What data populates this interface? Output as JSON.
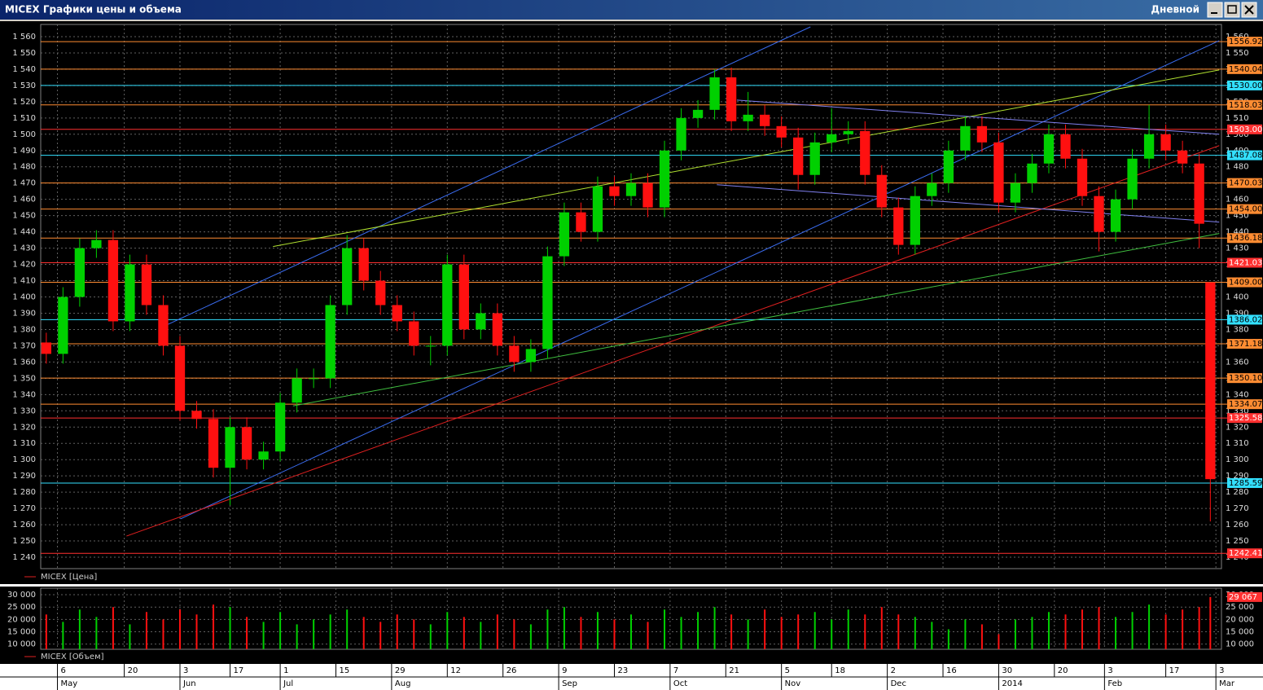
{
  "window": {
    "title": "MICEX Графики цены и объема",
    "period": "Дневной"
  },
  "chart_data": [
    {
      "type": "candlestick",
      "legend": "MICEX [Цена]",
      "up_color": "#00d000",
      "down_color": "#ff1010",
      "grid": true,
      "xlim": [
        -1,
        211
      ],
      "ylim": [
        1233.5,
        1566
      ],
      "x": [
        0,
        3,
        6,
        9,
        12,
        15,
        18,
        21,
        24,
        27,
        30,
        33,
        36,
        39,
        42,
        45,
        48,
        51,
        54,
        57,
        60,
        63,
        66,
        69,
        72,
        75,
        78,
        81,
        84,
        87,
        90,
        93,
        96,
        99,
        102,
        105,
        108,
        111,
        114,
        117,
        120,
        123,
        126,
        129,
        132,
        135,
        138,
        141,
        144,
        147,
        150,
        153,
        156,
        159,
        162,
        165,
        168,
        171,
        174,
        177,
        180,
        183,
        186,
        189,
        192,
        195,
        198,
        201,
        204,
        207,
        209
      ],
      "open": [
        1372,
        1365,
        1400,
        1430,
        1435,
        1385,
        1420,
        1395,
        1370,
        1330,
        1325,
        1295,
        1320,
        1300,
        1305,
        1335,
        1350,
        1350,
        1395,
        1430,
        1410,
        1395,
        1385,
        1370,
        1370,
        1420,
        1380,
        1390,
        1370,
        1360,
        1368,
        1425,
        1452,
        1440,
        1468,
        1462,
        1470,
        1455,
        1490,
        1510,
        1515,
        1535,
        1508,
        1512,
        1505,
        1498,
        1475,
        1495,
        1500,
        1502,
        1475,
        1455,
        1432,
        1462,
        1470,
        1490,
        1505,
        1495,
        1458,
        1470,
        1482,
        1500,
        1485,
        1462,
        1440,
        1460,
        1485,
        1500,
        1490,
        1482,
        1409
      ],
      "high": [
        1378,
        1406,
        1436,
        1441,
        1441,
        1426,
        1426,
        1401,
        1376,
        1336,
        1331,
        1326,
        1326,
        1311,
        1341,
        1356,
        1356,
        1401,
        1438,
        1436,
        1416,
        1401,
        1391,
        1376,
        1426,
        1426,
        1396,
        1396,
        1376,
        1374,
        1431,
        1458,
        1458,
        1474,
        1474,
        1476,
        1476,
        1496,
        1516,
        1521,
        1540,
        1541,
        1526,
        1518,
        1511,
        1504,
        1501,
        1516,
        1508,
        1508,
        1481,
        1461,
        1468,
        1476,
        1496,
        1511,
        1511,
        1501,
        1476,
        1488,
        1506,
        1506,
        1491,
        1468,
        1466,
        1491,
        1518,
        1506,
        1496,
        1488,
        1409
      ],
      "low": [
        1359,
        1359,
        1394,
        1424,
        1379,
        1379,
        1389,
        1364,
        1324,
        1319,
        1289,
        1272,
        1294,
        1294,
        1299,
        1329,
        1344,
        1344,
        1389,
        1404,
        1389,
        1379,
        1364,
        1358,
        1364,
        1374,
        1374,
        1364,
        1354,
        1354,
        1362,
        1419,
        1434,
        1434,
        1456,
        1456,
        1449,
        1449,
        1484,
        1504,
        1509,
        1502,
        1502,
        1499,
        1492,
        1466,
        1469,
        1489,
        1494,
        1469,
        1449,
        1426,
        1426,
        1456,
        1464,
        1484,
        1489,
        1452,
        1452,
        1464,
        1476,
        1479,
        1456,
        1428,
        1434,
        1454,
        1479,
        1484,
        1476,
        1430,
        1262
      ],
      "close": [
        1365,
        1400,
        1430,
        1435,
        1385,
        1420,
        1395,
        1370,
        1330,
        1325,
        1295,
        1320,
        1300,
        1305,
        1335,
        1350,
        1350,
        1395,
        1430,
        1410,
        1395,
        1385,
        1370,
        1370,
        1420,
        1380,
        1390,
        1370,
        1360,
        1368,
        1425,
        1452,
        1440,
        1468,
        1462,
        1470,
        1455,
        1490,
        1510,
        1515,
        1535,
        1508,
        1512,
        1505,
        1498,
        1475,
        1495,
        1500,
        1502,
        1475,
        1455,
        1432,
        1462,
        1470,
        1490,
        1505,
        1495,
        1458,
        1470,
        1482,
        1500,
        1485,
        1462,
        1440,
        1460,
        1485,
        1500,
        1490,
        1482,
        1445,
        1288
      ],
      "yticks": [
        {
          "value": 1240,
          "label": "1 240"
        },
        {
          "value": 1250,
          "label": "1 250"
        },
        {
          "value": 1260,
          "label": "1 260"
        },
        {
          "value": 1270,
          "label": "1 270"
        },
        {
          "value": 1280,
          "label": "1 280"
        },
        {
          "value": 1290,
          "label": "1 290"
        },
        {
          "value": 1300,
          "label": "1 300"
        },
        {
          "value": 1310,
          "label": "1 310"
        },
        {
          "value": 1320,
          "label": "1 320"
        },
        {
          "value": 1330,
          "label": "1 330"
        },
        {
          "value": 1340,
          "label": "1 340"
        },
        {
          "value": 1350,
          "label": "1 350"
        },
        {
          "value": 1360,
          "label": "1 360"
        },
        {
          "value": 1370,
          "label": "1 370"
        },
        {
          "value": 1380,
          "label": "1 380"
        },
        {
          "value": 1390,
          "label": "1 390"
        },
        {
          "value": 1400,
          "label": "1 400"
        },
        {
          "value": 1410,
          "label": "1 410"
        },
        {
          "value": 1420,
          "label": "1 420"
        },
        {
          "value": 1430,
          "label": "1 430"
        },
        {
          "value": 1440,
          "label": "1 440"
        },
        {
          "value": 1450,
          "label": "1 450"
        },
        {
          "value": 1460,
          "label": "1 460"
        },
        {
          "value": 1470,
          "label": "1 470"
        },
        {
          "value": 1480,
          "label": "1 480"
        },
        {
          "value": 1490,
          "label": "1 490"
        },
        {
          "value": 1500,
          "label": "1 500"
        },
        {
          "value": 1510,
          "label": "1 510"
        },
        {
          "value": 1520,
          "label": "1 520"
        },
        {
          "value": 1530,
          "label": "1 530"
        },
        {
          "value": 1540,
          "label": "1 540"
        },
        {
          "value": 1550,
          "label": "1 550"
        },
        {
          "value": 1560,
          "label": "1 560"
        }
      ],
      "xticks": [
        {
          "value": 2,
          "label": "6"
        },
        {
          "value": 14,
          "label": "20"
        },
        {
          "value": 24,
          "label": "3"
        },
        {
          "value": 33,
          "label": "17"
        },
        {
          "value": 42,
          "label": "1"
        },
        {
          "value": 52,
          "label": "15"
        },
        {
          "value": 62,
          "label": "29"
        },
        {
          "value": 72,
          "label": "12"
        },
        {
          "value": 82,
          "label": "26"
        },
        {
          "value": 92,
          "label": "9"
        },
        {
          "value": 102,
          "label": "23"
        },
        {
          "value": 112,
          "label": "7"
        },
        {
          "value": 122,
          "label": "21"
        },
        {
          "value": 132,
          "label": "5"
        },
        {
          "value": 141,
          "label": "18"
        },
        {
          "value": 151,
          "label": "2"
        },
        {
          "value": 161,
          "label": "16"
        },
        {
          "value": 171,
          "label": "30"
        },
        {
          "value": 181,
          "label": "20"
        },
        {
          "value": 190,
          "label": "3"
        },
        {
          "value": 201,
          "label": "17"
        },
        {
          "value": 210,
          "label": "3"
        }
      ],
      "month_ticks": [
        {
          "value": 2,
          "label": "May"
        },
        {
          "value": 24,
          "label": "Jun"
        },
        {
          "value": 42,
          "label": "Jul"
        },
        {
          "value": 62,
          "label": "Aug"
        },
        {
          "value": 92,
          "label": "Sep"
        },
        {
          "value": 112,
          "label": "Oct"
        },
        {
          "value": 132,
          "label": "Nov"
        },
        {
          "value": 151,
          "label": "Dec"
        },
        {
          "value": 171,
          "label": "2014"
        },
        {
          "value": 190,
          "label": "Feb"
        },
        {
          "value": 210,
          "label": "Mar"
        }
      ],
      "levels": [
        {
          "value": 1556.92,
          "label": "1556.92",
          "color": "#ff8c32"
        },
        {
          "value": 1540.04,
          "label": "1540.04",
          "color": "#ff8c32"
        },
        {
          "value": 1530,
          "label": "1530.00",
          "color": "#33e0ff"
        },
        {
          "value": 1518.03,
          "label": "1518.03",
          "color": "#ff8c32"
        },
        {
          "value": 1503,
          "label": "1503.00",
          "color": "#ff3030"
        },
        {
          "value": 1487.08,
          "label": "1487.08",
          "color": "#33e0ff"
        },
        {
          "value": 1470.03,
          "label": "1470.03",
          "color": "#ff8c32"
        },
        {
          "value": 1454,
          "label": "1454.00",
          "color": "#ff8c32"
        },
        {
          "value": 1436.18,
          "label": "1436.18",
          "color": "#ff8c32"
        },
        {
          "value": 1421.03,
          "label": "1421.03",
          "color": "#ff3030"
        },
        {
          "value": 1409,
          "label": "1409.00",
          "color": "#ff8c32"
        },
        {
          "value": 1386.02,
          "label": "1386.02",
          "color": "#33e0ff"
        },
        {
          "value": 1371.18,
          "label": "1371.18",
          "color": "#ff8c32"
        },
        {
          "value": 1350.1,
          "label": "1350.10",
          "color": "#ff8c32"
        },
        {
          "value": 1334.07,
          "label": "1334.07",
          "color": "#ff8c32"
        },
        {
          "value": 1325.58,
          "label": "1325.58",
          "color": "#ff3030"
        },
        {
          "value": 1285.59,
          "label": "1285.59",
          "color": "#33e0ff"
        },
        {
          "value": 1242.41,
          "label": "1242.41",
          "color": "#ff3030"
        }
      ],
      "trend_lines": [
        {
          "color": "#3a6cf0",
          "x": [
            20.5,
            137.2
          ],
          "y": [
            1381,
            1566
          ]
        },
        {
          "color": "#3a6cf0",
          "x": [
            24.1,
            210.6
          ],
          "y": [
            1263.6,
            1557.5
          ]
        },
        {
          "color": "#e02020",
          "x": [
            14.4,
            210.6
          ],
          "y": [
            1253,
            1493
          ]
        },
        {
          "color": "#b0e030",
          "x": [
            40.7,
            210.6
          ],
          "y": [
            1431,
            1539.5
          ]
        },
        {
          "color": "#40c040",
          "x": [
            44.3,
            210.6
          ],
          "y": [
            1333,
            1439
          ]
        },
        {
          "color": "#8080f0",
          "x": [
            124,
            210.6
          ],
          "y": [
            1521,
            1500
          ]
        },
        {
          "color": "#8080f0",
          "x": [
            120.4,
            210.6
          ],
          "y": [
            1469,
            1446
          ]
        }
      ]
    },
    {
      "type": "bar",
      "legend": "MICEX [Объем]",
      "ylim": [
        7900,
        32000
      ],
      "values": [
        22000,
        19000,
        24000,
        21000,
        25000,
        18000,
        23000,
        20000,
        24000,
        22000,
        26000,
        25000,
        21000,
        19000,
        23000,
        18000,
        20000,
        22000,
        24000,
        21000,
        19000,
        22000,
        20000,
        18000,
        23000,
        21000,
        19000,
        22000,
        20000,
        18000,
        24000,
        25000,
        21000,
        23000,
        20000,
        22000,
        19000,
        24000,
        21000,
        23000,
        25000,
        22000,
        20000,
        24000,
        21000,
        22000,
        23000,
        20000,
        24000,
        22000,
        25000,
        22000,
        21000,
        19000,
        16000,
        20000,
        18000,
        14000,
        20000,
        21000,
        23000,
        22000,
        24000,
        25000,
        21000,
        23000,
        26000,
        22000,
        24000,
        25000,
        29067
      ],
      "yticks": [
        {
          "value": 10000,
          "label": "10 000"
        },
        {
          "value": 15000,
          "label": "15 000"
        },
        {
          "value": 20000,
          "label": "20 000"
        },
        {
          "value": 25000,
          "label": "25 000"
        },
        {
          "value": 30000,
          "label": "30 000"
        }
      ],
      "levels": [
        {
          "value": 29067,
          "label": "29 067",
          "color": "#ff3030"
        }
      ]
    }
  ]
}
